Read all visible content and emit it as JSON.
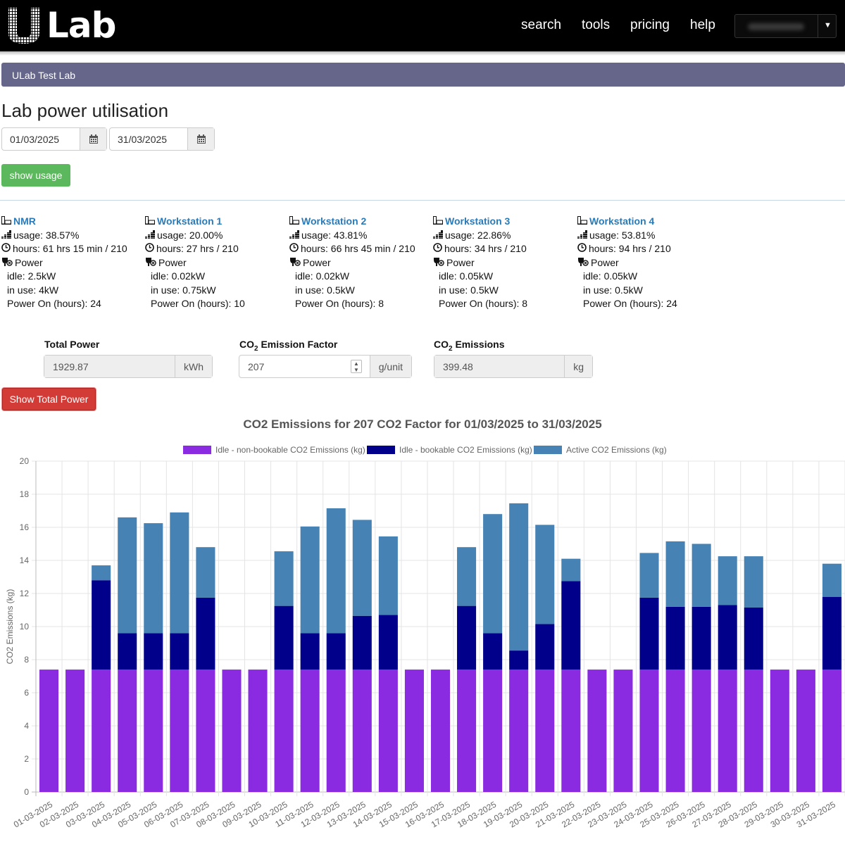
{
  "header": {
    "logo_text": "Lab",
    "nav": [
      "search",
      "tools",
      "pricing",
      "help"
    ]
  },
  "lab_name": "ULab Test Lab",
  "page_title": "Lab power utilisation",
  "date_from": "01/03/2025",
  "date_to": "31/03/2025",
  "show_usage_label": "show usage",
  "instruments": [
    {
      "name": "NMR",
      "usage": "usage: 38.57%",
      "hours": "hours: 61 hrs 15 min / 210",
      "power_label": "Power",
      "idle": "idle: 2.5kW",
      "in_use": "in use: 4kW",
      "power_on": "Power On (hours): 24"
    },
    {
      "name": "Workstation 1",
      "usage": "usage: 20.00%",
      "hours": "hours: 27 hrs / 210",
      "power_label": "Power",
      "idle": "idle: 0.02kW",
      "in_use": "in use: 0.75kW",
      "power_on": "Power On (hours): 10"
    },
    {
      "name": "Workstation 2",
      "usage": "usage: 43.81%",
      "hours": "hours: 66 hrs 45 min / 210",
      "power_label": "Power",
      "idle": "idle: 0.02kW",
      "in_use": "in use: 0.5kW",
      "power_on": "Power On (hours): 8"
    },
    {
      "name": "Workstation 3",
      "usage": "usage: 22.86%",
      "hours": "hours: 34 hrs / 210",
      "power_label": "Power",
      "idle": "idle: 0.05kW",
      "in_use": "in use: 0.5kW",
      "power_on": "Power On (hours): 8"
    },
    {
      "name": "Workstation 4",
      "usage": "usage: 53.81%",
      "hours": "hours: 94 hrs / 210",
      "power_label": "Power",
      "idle": "idle: 0.05kW",
      "in_use": "in use: 0.5kW",
      "power_on": "Power On (hours): 24"
    }
  ],
  "totals": {
    "total_power_label": "Total Power",
    "total_power_value": "1929.87",
    "total_power_unit": "kWh",
    "factor_label_pre": "CO",
    "factor_label_sub": "2",
    "factor_label_post": " Emission Factor",
    "factor_value": "207",
    "factor_unit": "g/unit",
    "emissions_label_pre": "CO",
    "emissions_label_sub": "2",
    "emissions_label_post": " Emissions",
    "emissions_value": "399.48",
    "emissions_unit": "kg"
  },
  "show_total_label": "Show Total Power",
  "colors": {
    "idle_nonbookable": "#8a2be2",
    "idle_bookable": "#00008b",
    "active": "#4682b4",
    "green_button": "#5cb85c",
    "red_button": "#d33b36",
    "lab_bar": "#66668a"
  },
  "chart_data": {
    "type": "bar",
    "stacked": true,
    "title": "CO2 Emissions for 207 CO2 Factor for 01/03/2025 to 31/03/2025",
    "ylabel": "CO2 Emissions (kg)",
    "xlabel": "",
    "ylim": [
      0,
      20
    ],
    "yticks": [
      0,
      2,
      4,
      6,
      8,
      10,
      12,
      14,
      16,
      18,
      20
    ],
    "legend_position": "top",
    "categories": [
      "01-03-2025",
      "02-03-2025",
      "03-03-2025",
      "04-03-2025",
      "05-03-2025",
      "06-03-2025",
      "07-03-2025",
      "08-03-2025",
      "09-03-2025",
      "10-03-2025",
      "11-03-2025",
      "12-03-2025",
      "13-03-2025",
      "14-03-2025",
      "15-03-2025",
      "16-03-2025",
      "17-03-2025",
      "18-03-2025",
      "19-03-2025",
      "20-03-2025",
      "21-03-2025",
      "22-03-2025",
      "23-03-2025",
      "24-03-2025",
      "25-03-2025",
      "26-03-2025",
      "27-03-2025",
      "28-03-2025",
      "29-03-2025",
      "30-03-2025",
      "31-03-2025"
    ],
    "series": [
      {
        "name": "Idle - non-bookable CO2 Emissions (kg)",
        "color": "#8a2be2",
        "values": [
          7.4,
          7.4,
          7.4,
          7.4,
          7.4,
          7.4,
          7.4,
          7.4,
          7.4,
          7.4,
          7.4,
          7.4,
          7.4,
          7.4,
          7.4,
          7.4,
          7.4,
          7.4,
          7.4,
          7.4,
          7.4,
          7.4,
          7.4,
          7.4,
          7.4,
          7.4,
          7.4,
          7.4,
          7.4,
          7.4,
          7.4
        ]
      },
      {
        "name": "Idle - bookable CO2 Emissions (kg)",
        "color": "#00008b",
        "values": [
          0,
          0,
          5.4,
          2.2,
          2.2,
          2.2,
          4.35,
          0,
          0,
          3.85,
          2.2,
          2.2,
          3.25,
          3.3,
          0,
          0,
          3.85,
          2.2,
          1.15,
          2.75,
          5.35,
          0,
          0,
          4.35,
          3.8,
          3.8,
          3.9,
          3.75,
          0,
          0,
          4.4
        ]
      },
      {
        "name": "Active CO2 Emissions (kg)",
        "color": "#4682b4",
        "values": [
          0,
          0,
          0.9,
          7.0,
          6.65,
          7.3,
          3.05,
          0,
          0,
          3.3,
          6.45,
          7.55,
          5.8,
          4.75,
          0,
          0,
          3.55,
          7.2,
          8.9,
          6.0,
          1.35,
          0,
          0,
          2.7,
          3.95,
          3.8,
          2.95,
          3.1,
          0,
          0,
          2.0
        ]
      }
    ]
  }
}
